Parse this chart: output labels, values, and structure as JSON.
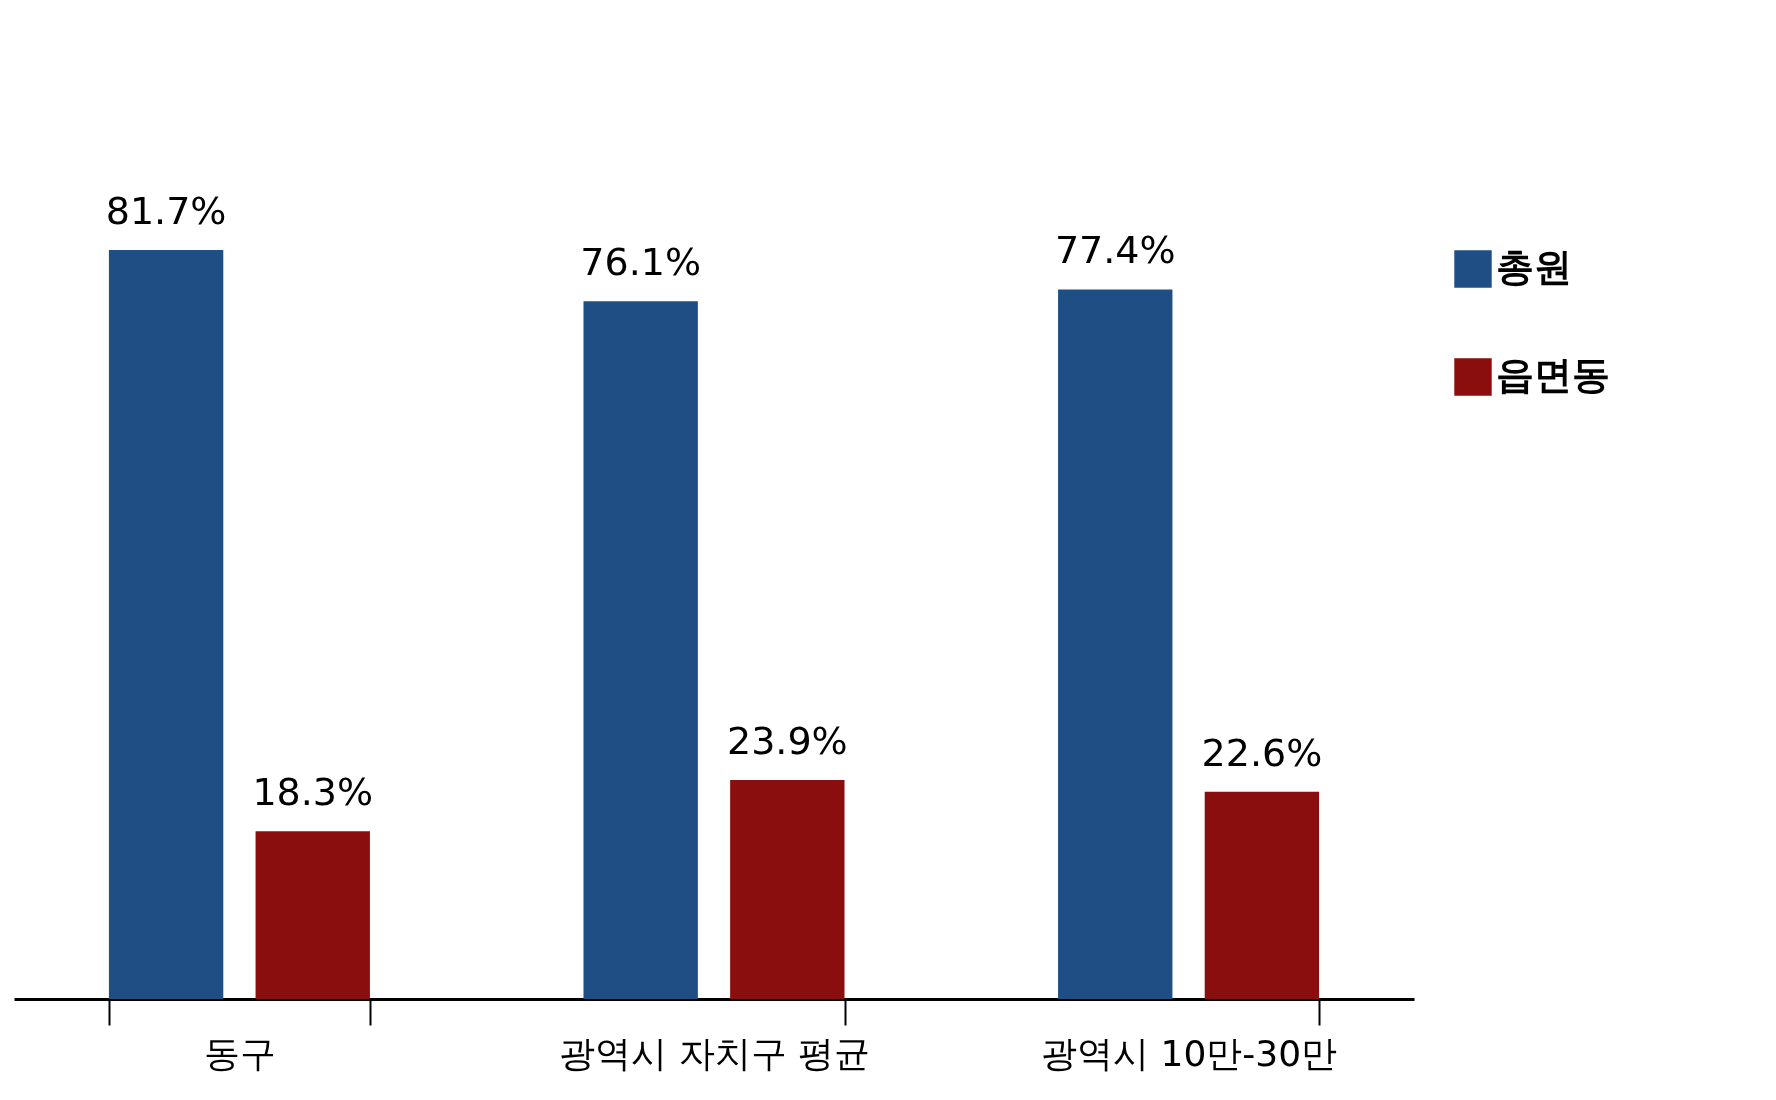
{
  "chart_data": {
    "type": "bar",
    "categories": [
      "동구",
      "광역시 자치구 평균",
      "광역시 10만-30만"
    ],
    "series": [
      {
        "name": "총원",
        "color": "#1f4e85",
        "values": [
          81.7,
          76.1,
          77.4
        ],
        "value_labels": [
          "81.7%",
          "76.1%",
          "77.4%"
        ]
      },
      {
        "name": "읍면동",
        "color": "#8b0e0e",
        "values": [
          18.3,
          23.9,
          22.6
        ],
        "value_labels": [
          "18.3%",
          "23.9%",
          "22.6%"
        ]
      }
    ],
    "legend": "right"
  }
}
